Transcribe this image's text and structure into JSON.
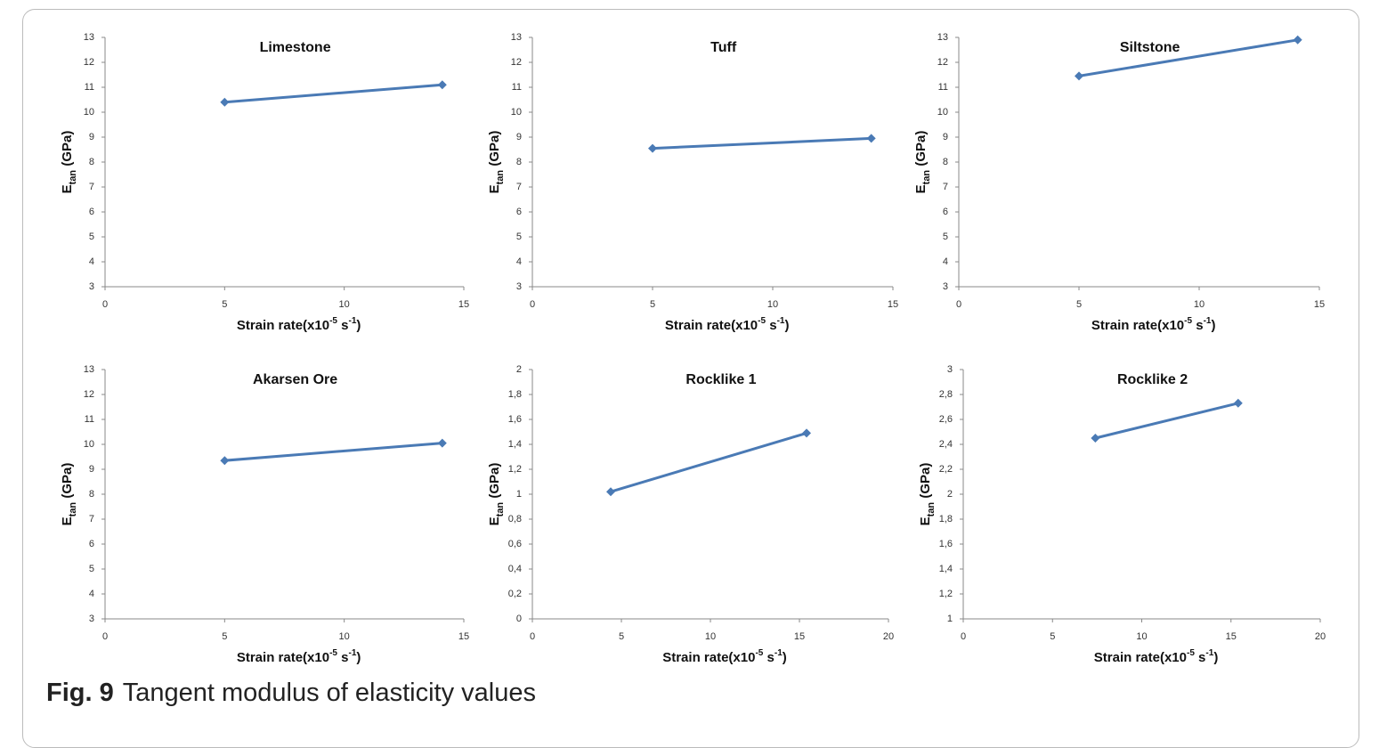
{
  "chart_data": [
    {
      "type": "line",
      "title": "Limestone",
      "xlabel": [
        "Strain rate(x10",
        "-5",
        " s",
        "-1",
        ")"
      ],
      "ylabel": [
        "E",
        "tan",
        " (GPa)"
      ],
      "x": [
        5,
        14.1
      ],
      "series": [
        {
          "color": "#4a7ab5",
          "values": [
            10.4,
            11.1
          ]
        }
      ],
      "xlim": [
        0,
        15
      ],
      "xticks": [
        0,
        5,
        10,
        15
      ],
      "ylim": [
        3,
        13
      ],
      "yticks": [
        3,
        4,
        5,
        6,
        7,
        8,
        9,
        10,
        11,
        12,
        13
      ]
    },
    {
      "type": "line",
      "title": "Tuff",
      "xlabel": [
        "Strain rate(x10",
        "-5",
        " s",
        "-1",
        ")"
      ],
      "ylabel": [
        "E",
        "tan",
        " (GPa)"
      ],
      "x": [
        5,
        14.1
      ],
      "series": [
        {
          "color": "#4a7ab5",
          "values": [
            8.55,
            8.95
          ]
        }
      ],
      "xlim": [
        0,
        15
      ],
      "xticks": [
        0,
        5,
        10,
        15
      ],
      "ylim": [
        3,
        13
      ],
      "yticks": [
        3,
        4,
        5,
        6,
        7,
        8,
        9,
        10,
        11,
        12,
        13
      ]
    },
    {
      "type": "line",
      "title": "Siltstone",
      "xlabel": [
        "Strain rate(x10",
        "-5",
        " s",
        "-1",
        ")"
      ],
      "ylabel": [
        "E",
        "tan",
        " (GPa)"
      ],
      "x": [
        5,
        14.1
      ],
      "series": [
        {
          "color": "#4a7ab5",
          "values": [
            11.45,
            12.9
          ]
        }
      ],
      "xlim": [
        0,
        15
      ],
      "xticks": [
        0,
        5,
        10,
        15
      ],
      "ylim": [
        3,
        13
      ],
      "yticks": [
        3,
        4,
        5,
        6,
        7,
        8,
        9,
        10,
        11,
        12,
        13
      ]
    },
    {
      "type": "line",
      "title": "Akarsen Ore",
      "xlabel": [
        "Strain rate(x10",
        "-5",
        " s",
        "-1",
        ")"
      ],
      "ylabel": [
        "E",
        "tan",
        " (GPa)"
      ],
      "x": [
        5,
        14.1
      ],
      "series": [
        {
          "color": "#4a7ab5",
          "values": [
            9.35,
            10.05
          ]
        }
      ],
      "xlim": [
        0,
        15
      ],
      "xticks": [
        0,
        5,
        10,
        15
      ],
      "ylim": [
        3,
        13
      ],
      "yticks": [
        3,
        4,
        5,
        6,
        7,
        8,
        9,
        10,
        11,
        12,
        13
      ]
    },
    {
      "type": "line",
      "title": "Rocklike 1",
      "xlabel": [
        "Strain rate(x10",
        "-5",
        " s",
        "-1",
        ")"
      ],
      "ylabel": [
        "E",
        "tan",
        " (GPa)"
      ],
      "x": [
        4.4,
        15.4
      ],
      "series": [
        {
          "color": "#4a7ab5",
          "values": [
            1.02,
            1.49
          ]
        }
      ],
      "xlim": [
        0,
        20
      ],
      "xticks": [
        0,
        5,
        10,
        15,
        20
      ],
      "ylim": [
        0,
        2
      ],
      "yticks": [
        0,
        {
          "value": 0.2,
          "label": "0,2"
        },
        {
          "value": 0.4,
          "label": "0,4"
        },
        {
          "value": 0.6,
          "label": "0,6"
        },
        {
          "value": 0.8,
          "label": "0,8"
        },
        1,
        {
          "value": 1.2,
          "label": "1,2"
        },
        {
          "value": 1.4,
          "label": "1,4"
        },
        {
          "value": 1.6,
          "label": "1,6"
        },
        {
          "value": 1.8,
          "label": "1,8"
        },
        2
      ]
    },
    {
      "type": "line",
      "title": "Rocklike 2",
      "xlabel": [
        "Strain rate(x10",
        "-5",
        " s",
        "-1",
        ")"
      ],
      "ylabel": [
        "E",
        "tan",
        " (GPa)"
      ],
      "x": [
        7.4,
        15.4
      ],
      "series": [
        {
          "color": "#4a7ab5",
          "values": [
            2.45,
            2.73
          ]
        }
      ],
      "xlim": [
        0,
        20
      ],
      "xticks": [
        0,
        5,
        10,
        15,
        20
      ],
      "ylim": [
        1,
        3
      ],
      "yticks": [
        1,
        {
          "value": 1.2,
          "label": "1,2"
        },
        {
          "value": 1.4,
          "label": "1,4"
        },
        {
          "value": 1.6,
          "label": "1,6"
        },
        {
          "value": 1.8,
          "label": "1,8"
        },
        2,
        {
          "value": 2.2,
          "label": "2,2"
        },
        {
          "value": 2.4,
          "label": "2,4"
        },
        {
          "value": 2.6,
          "label": "2,6"
        },
        {
          "value": 2.8,
          "label": "2,8"
        },
        3
      ]
    }
  ],
  "caption": {
    "label": "Fig. 9",
    "text": "Tangent modulus of elasticity values"
  }
}
